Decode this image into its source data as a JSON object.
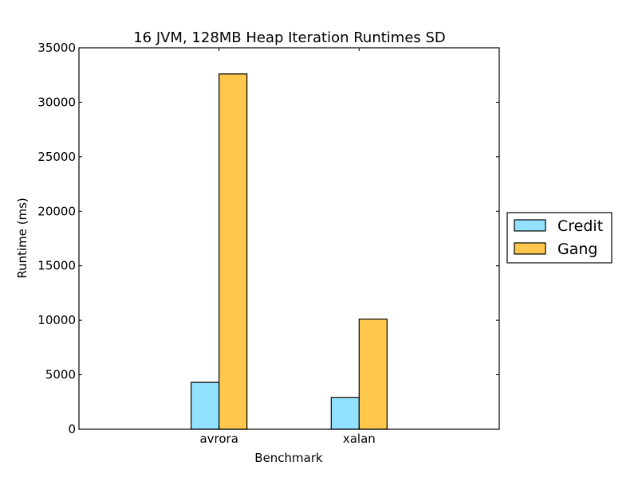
{
  "chart_data": {
    "type": "bar",
    "title": "16 JVM, 128MB Heap Iteration Runtimes SD",
    "xlabel": "Benchmark",
    "ylabel": "Runtime (ms)",
    "categories": [
      "avrora",
      "xalan"
    ],
    "series": [
      {
        "name": "Credit",
        "values": [
          4300,
          2900
        ],
        "color": "#92e2ff"
      },
      {
        "name": "Gang",
        "values": [
          32600,
          10100
        ],
        "color": "#ffc84c"
      }
    ],
    "ylim": [
      0,
      35000
    ],
    "yticks": [
      0,
      5000,
      10000,
      15000,
      20000,
      25000,
      30000,
      35000
    ],
    "grid": false,
    "legend_position": "outside-right"
  }
}
